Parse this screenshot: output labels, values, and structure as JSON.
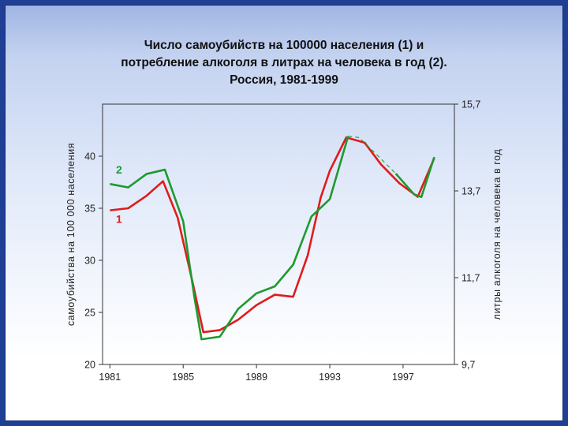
{
  "chart_data": {
    "type": "line",
    "title_lines": [
      "Число самоубийств на 100000 населения (1) и",
      "потребление алкоголя в литрах на человека в год (2).",
      "Россия, 1981-1999"
    ],
    "ylabel_left": "самоубийства на 100 000 населения",
    "ylabel_right": "литры алкоголя на человека в год",
    "x_ticks": [
      "1981",
      "1985",
      "1989",
      "1993",
      "1997"
    ],
    "xlim": [
      1980.6,
      1999.8
    ],
    "y_left_ticks": [
      "20",
      "25",
      "30",
      "35",
      "40"
    ],
    "y_left_lim": [
      20,
      45
    ],
    "y_right_ticks": [
      "9,7",
      "11,7",
      "13,7",
      "15,7"
    ],
    "y_right_lim": [
      9.7,
      15.7
    ],
    "grid": false,
    "series": [
      {
        "name": "1",
        "axis": "left",
        "color": "#e01b1b",
        "label_at": [
          1981.5,
          33.6
        ],
        "points": [
          [
            1981.0,
            34.8
          ],
          [
            1982.0,
            35.0
          ],
          [
            1983.0,
            36.2
          ],
          [
            1983.9,
            37.6
          ],
          [
            1984.7,
            34.1
          ],
          [
            1985.5,
            28.0
          ],
          [
            1986.1,
            23.1
          ],
          [
            1987.0,
            23.3
          ],
          [
            1988.0,
            24.3
          ],
          [
            1989.0,
            25.7
          ],
          [
            1990.0,
            26.7
          ],
          [
            1991.0,
            26.5
          ],
          [
            1991.8,
            30.5
          ],
          [
            1992.5,
            36.0
          ],
          [
            1993.0,
            38.6
          ],
          [
            1993.9,
            41.8
          ],
          [
            1994.9,
            41.3
          ],
          [
            1995.8,
            39.2
          ],
          [
            1996.8,
            37.4
          ],
          [
            1997.8,
            36.1
          ],
          [
            1998.7,
            39.8
          ]
        ]
      },
      {
        "name": "2",
        "axis": "right",
        "color": "#1e9a2f",
        "label_at": [
          1981.5,
          14.1
        ],
        "points": [
          [
            1981.0,
            13.86
          ],
          [
            1982.0,
            13.78
          ],
          [
            1983.0,
            14.09
          ],
          [
            1984.0,
            14.19
          ],
          [
            1985.0,
            13.0
          ],
          [
            1985.6,
            11.28
          ],
          [
            1986.0,
            10.28
          ],
          [
            1987.0,
            10.34
          ],
          [
            1988.0,
            10.98
          ],
          [
            1989.0,
            11.34
          ],
          [
            1990.0,
            11.5
          ],
          [
            1991.0,
            12.0
          ],
          [
            1992.0,
            13.11
          ],
          [
            1993.0,
            13.51
          ],
          [
            1994.0,
            14.96
          ],
          [
            1994.6,
            14.93
          ],
          [
            1995.6,
            14.52
          ],
          [
            1996.6,
            14.1
          ],
          [
            1997.6,
            13.62
          ],
          [
            1998.0,
            13.56
          ],
          [
            1998.7,
            14.48
          ]
        ],
        "dashed_from": 14,
        "dashed_to": 17
      }
    ]
  }
}
